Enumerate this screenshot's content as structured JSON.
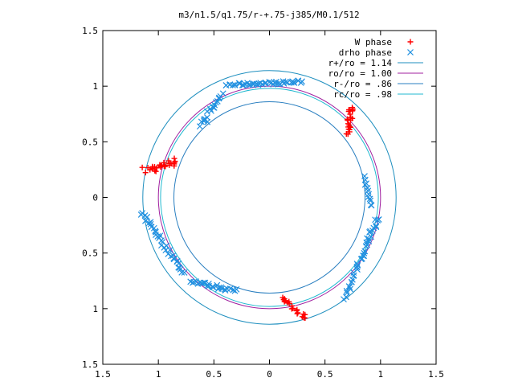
{
  "chart_data": {
    "type": "scatter",
    "title": "m3/n1.5/q1.75/r-+.75-j385/M0.1/512",
    "xlim": [
      -1.5,
      1.5
    ],
    "ylim": [
      -1.5,
      1.5
    ],
    "x_ticks": [
      {
        "value": -1.5,
        "label": "1.5"
      },
      {
        "value": -1.0,
        "label": "1"
      },
      {
        "value": -0.5,
        "label": "0.5"
      },
      {
        "value": 0,
        "label": "0"
      },
      {
        "value": 0.5,
        "label": "0.5"
      },
      {
        "value": 1.0,
        "label": "1"
      },
      {
        "value": 1.5,
        "label": "1.5"
      }
    ],
    "y_ticks": [
      {
        "value": 1.5,
        "label": "1.5"
      },
      {
        "value": 1.0,
        "label": "1"
      },
      {
        "value": 0.5,
        "label": "0.5"
      },
      {
        "value": 0,
        "label": "0"
      },
      {
        "value": -0.5,
        "label": "0.5"
      },
      {
        "value": -1.0,
        "label": "1"
      },
      {
        "value": -1.5,
        "label": "1.5"
      }
    ],
    "legend_position": "top-right",
    "circles": [
      {
        "name": "r+/ro = 1.14",
        "r": 1.14,
        "color": "#1f8fbf"
      },
      {
        "name": "ro/ro = 1.00",
        "r": 1.0,
        "color": "#a0209f"
      },
      {
        "name": "r-/ro = .86",
        "r": 0.86,
        "color": "#2a7fc0"
      },
      {
        "name": "rc/ro = .98",
        "r": 0.98,
        "color": "#20b8d0"
      }
    ],
    "series": [
      {
        "name": "W phase",
        "marker": "plus",
        "color": "#ff0000",
        "segments": [
          {
            "from": [
              -1.11,
              0.24
            ],
            "to": [
              -0.84,
              0.33
            ],
            "n": 30,
            "spread": 0.035
          },
          {
            "from": [
              0.7,
              0.57
            ],
            "to": [
              0.74,
              0.82
            ],
            "n": 24,
            "spread": 0.022
          },
          {
            "from": [
              0.11,
              -0.9
            ],
            "to": [
              0.32,
              -1.09
            ],
            "n": 22,
            "spread": 0.02
          }
        ]
      },
      {
        "name": "drho phase",
        "marker": "cross",
        "color": "#2090e0",
        "segments": [
          {
            "from": [
              -0.4,
              1.01
            ],
            "to": [
              0.3,
              1.04
            ],
            "n": 44,
            "spread": 0.012
          },
          {
            "from": [
              -0.61,
              0.66
            ],
            "to": [
              -0.44,
              0.91
            ],
            "n": 20,
            "spread": 0.025
          },
          {
            "from": [
              -1.15,
              -0.14
            ],
            "to": [
              -0.77,
              -0.68
            ],
            "n": 36,
            "spread": 0.018
          },
          {
            "from": [
              -0.72,
              -0.75
            ],
            "to": [
              -0.3,
              -0.84
            ],
            "n": 26,
            "spread": 0.015
          },
          {
            "from": [
              0.85,
              0.18
            ],
            "to": [
              0.93,
              -0.08
            ],
            "n": 12,
            "spread": 0.012
          },
          {
            "from": [
              0.97,
              -0.18
            ],
            "to": [
              0.68,
              -0.9
            ],
            "n": 40,
            "spread": 0.02
          }
        ]
      }
    ]
  }
}
